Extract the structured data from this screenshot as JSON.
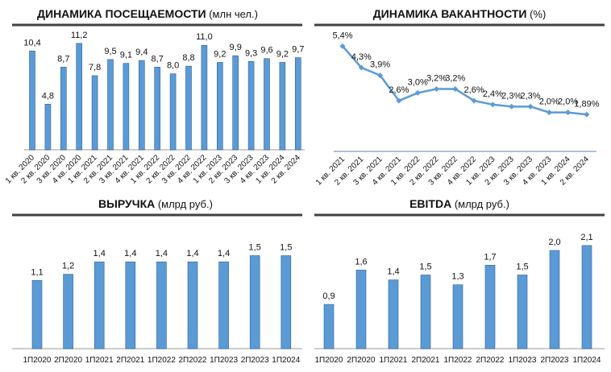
{
  "colors": {
    "bar": "#5b9bd5",
    "bar_edge": "#2f5f9e",
    "line": "#5b9bd5",
    "rule": "#404040"
  },
  "chart_data": [
    {
      "type": "bar",
      "title": "ДИНАМИКА ПОСЕЩАЕМОСТИ",
      "unit": "(млн чел.)",
      "categories": [
        "1 кв. 2020",
        "2 кв. 2020",
        "3 кв. 2020",
        "4 кв. 2020",
        "1 кв. 2021",
        "2 кв. 2021",
        "3 кв. 2021",
        "4 кв. 2021",
        "1 кв. 2022",
        "2 кв. 2022",
        "3 кв. 2022",
        "4 кв. 2022",
        "1 кв. 2023",
        "2 кв. 2023",
        "3 кв. 2023",
        "4 кв. 2023",
        "1 кв. 2024",
        "2 кв. 2024"
      ],
      "values": [
        10.4,
        4.8,
        8.7,
        11.2,
        7.8,
        9.5,
        9.1,
        9.4,
        8.7,
        8.0,
        8.8,
        11.0,
        9.2,
        9.9,
        9.3,
        9.6,
        9.2,
        9.7
      ],
      "labels": [
        "10,4",
        "4,8",
        "8,7",
        "11,2",
        "7,8",
        "9,5",
        "9,1",
        "9,4",
        "8,7",
        "8,0",
        "8,8",
        "11,0",
        "9,2",
        "9,9",
        "9,3",
        "9,6",
        "9,2",
        "9,7"
      ],
      "grid": false
    },
    {
      "type": "line",
      "title": "ДИНАМИКА ВАКАНТНОСТИ",
      "unit": "(%)",
      "categories": [
        "1 кв. 2021",
        "2 кв. 2021",
        "3 кв. 2021",
        "4 кв. 2021",
        "1 кв. 2022",
        "2 кв. 2022",
        "3 кв. 2022",
        "4 кв. 2022",
        "1 кв. 2023",
        "2 кв. 2023",
        "3 кв. 2023",
        "4 кв. 2023",
        "1 кв. 2024",
        "2 кв. 2024"
      ],
      "values": [
        5.4,
        4.3,
        3.9,
        2.6,
        3.0,
        3.2,
        3.2,
        2.6,
        2.4,
        2.3,
        2.3,
        2.0,
        2.0,
        1.89
      ],
      "labels": [
        "5,4%",
        "4,3%",
        "3,9%",
        "2,6%",
        "3,0%",
        "3,2%",
        "3,2%",
        "2,6%",
        "2,4%",
        "2,3%",
        "2,3%",
        "2,0%",
        "2,0%",
        "1,89%"
      ],
      "grid": false
    },
    {
      "type": "bar",
      "title": "ВЫРУЧКА",
      "unit": "(млрд руб.)",
      "categories": [
        "1П2020",
        "2П2020",
        "1П2021",
        "2П2021",
        "1П2022",
        "2П2022",
        "1П2023",
        "2П2023",
        "1П2024"
      ],
      "values": [
        1.1,
        1.2,
        1.4,
        1.4,
        1.4,
        1.4,
        1.4,
        1.5,
        1.5
      ],
      "labels": [
        "1,1",
        "1,2",
        "1,4",
        "1,4",
        "1,4",
        "1,4",
        "1,4",
        "1,5",
        "1,5"
      ],
      "grid": false
    },
    {
      "type": "bar",
      "title": "EBITDA",
      "unit": "(млрд руб.)",
      "categories": [
        "1П2020",
        "2П2020",
        "1П2021",
        "2П2021",
        "1П2022",
        "2П2022",
        "1П2023",
        "2П2023",
        "1П2024"
      ],
      "values": [
        0.9,
        1.6,
        1.4,
        1.5,
        1.3,
        1.7,
        1.5,
        2.0,
        2.1
      ],
      "labels": [
        "0,9",
        "1,6",
        "1,4",
        "1,5",
        "1,3",
        "1,7",
        "1,5",
        "2,0",
        "2,1"
      ],
      "grid": false
    }
  ]
}
